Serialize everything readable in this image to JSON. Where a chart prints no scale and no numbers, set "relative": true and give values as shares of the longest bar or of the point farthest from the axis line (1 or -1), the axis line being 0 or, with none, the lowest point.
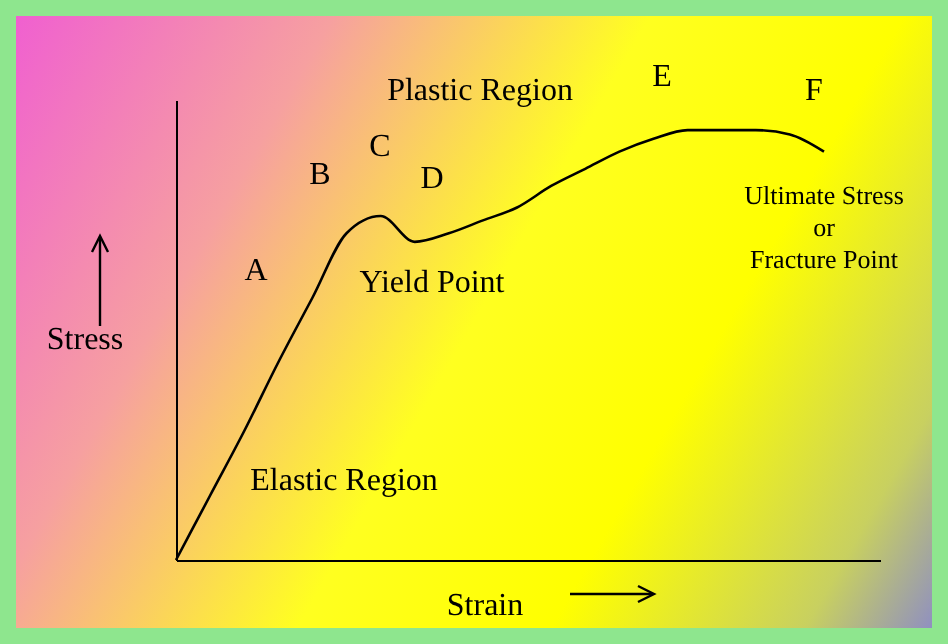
{
  "chart_data": {
    "type": "line",
    "relative": true,
    "xlabel": "Strain",
    "ylabel": "Stress",
    "categories": [
      null,
      null,
      null,
      null,
      null,
      null,
      null,
      null,
      null,
      null,
      null,
      null,
      null,
      null,
      null,
      null,
      null,
      null,
      null,
      null
    ],
    "series": [
      {
        "color": "#000000",
        "values": [
          0,
          0.15,
          0.3,
          0.46,
          0.61,
          0.76,
          0.8,
          0.74,
          0.76,
          0.79,
          0.82,
          0.87,
          0.91,
          0.95,
          0.98,
          1,
          1,
          1,
          0.99,
          0.95
        ]
      }
    ],
    "annotations": [
      "Plastic Region",
      "A",
      "B",
      "C",
      "D",
      "E",
      "F",
      "Yield Point",
      "Ultimate Stress\nor\nFracture Point",
      "Elastic Region"
    ]
  }
}
